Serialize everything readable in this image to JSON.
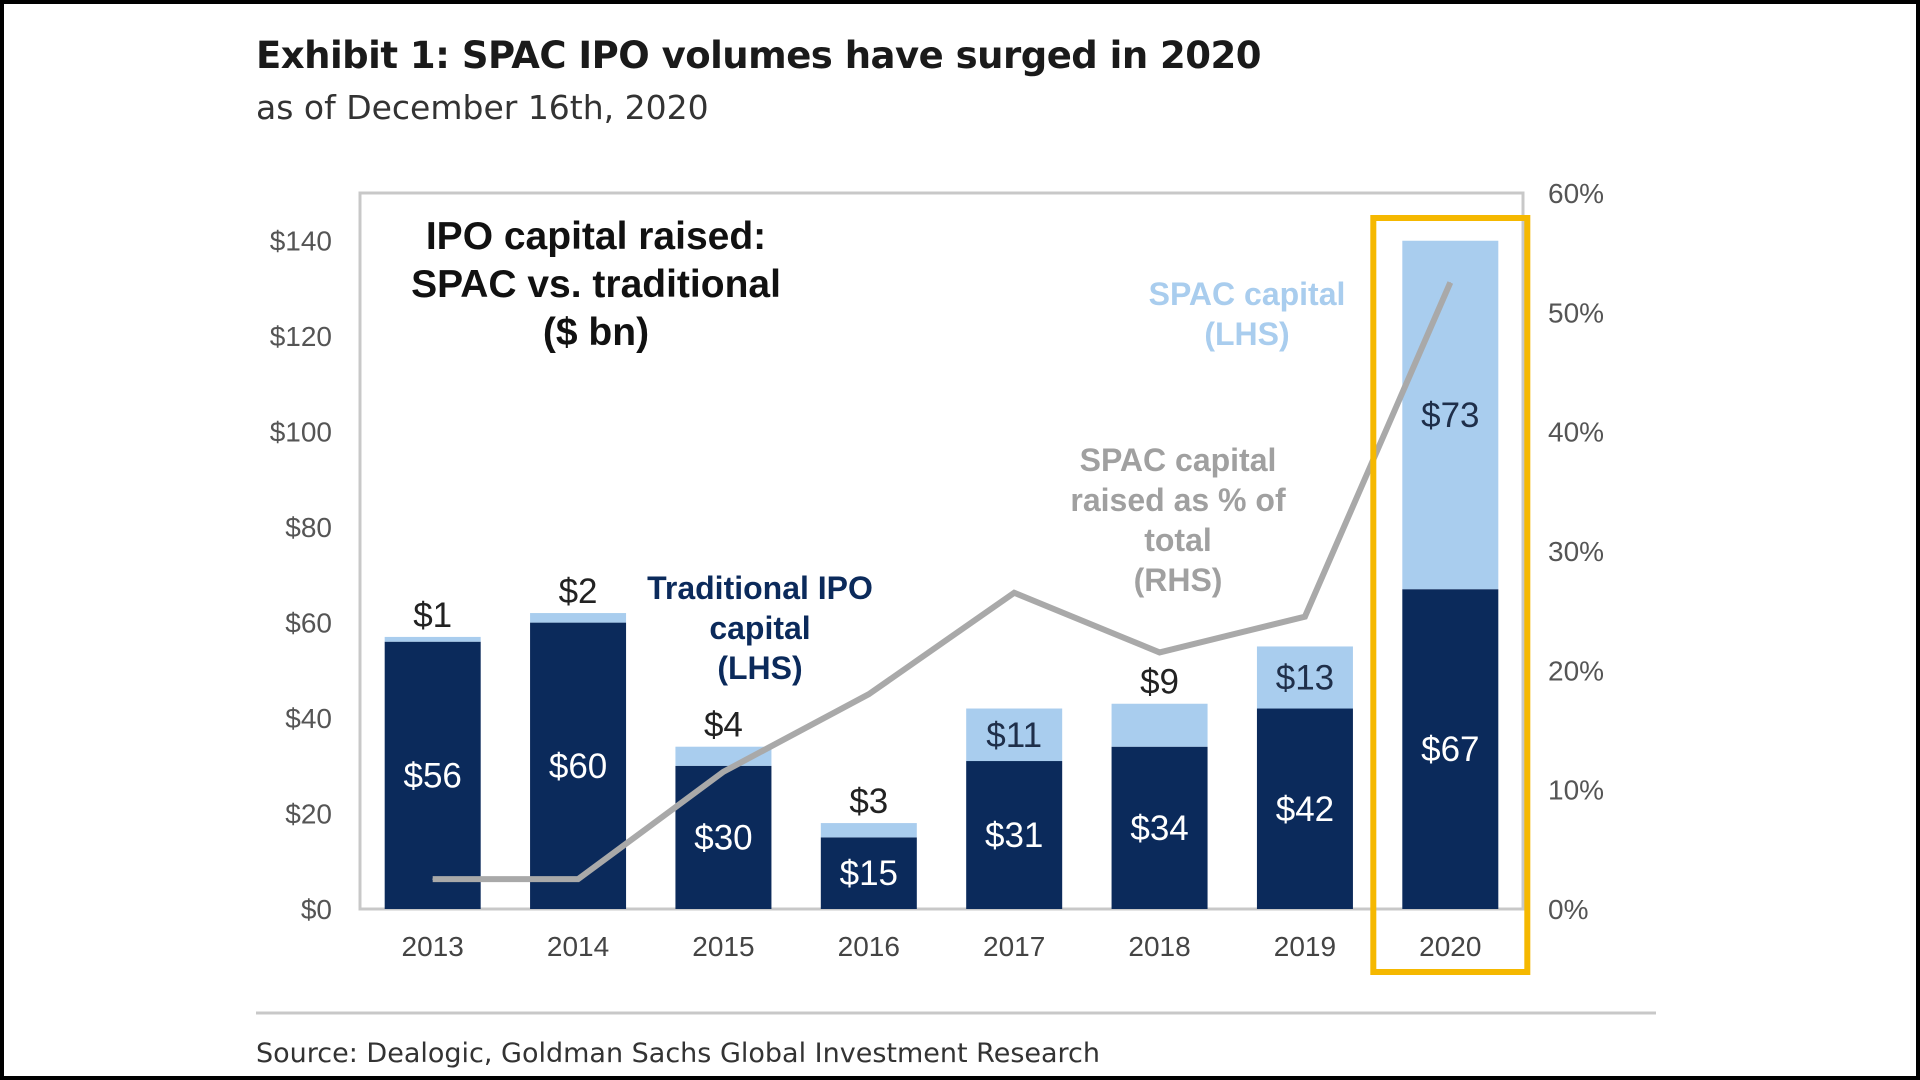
{
  "exhibit": {
    "title": "Exhibit 1: SPAC IPO volumes have surged in 2020",
    "subtitle": "as of December 16th, 2020",
    "source": "Source: Dealogic, Goldman Sachs Global Investment Research"
  },
  "colors": {
    "traditional": "#0b2a5b",
    "spac": "#a9cdee",
    "line": "#a9a9a9",
    "highlight": "#f5b800",
    "traditional_label": "#0b2a5b",
    "spac_label": "#a9cdee",
    "line_label": "#a0a0a0"
  },
  "chart_data": {
    "type": "bar",
    "stacked": true,
    "title": "IPO capital raised:\nSPAC vs. traditional\n($ bn)",
    "categories": [
      "2013",
      "2014",
      "2015",
      "2016",
      "2017",
      "2018",
      "2019",
      "2020"
    ],
    "series": [
      {
        "name": "Traditional IPO capital (LHS)",
        "axis": "left",
        "values": [
          56,
          60,
          30,
          15,
          31,
          34,
          42,
          67
        ],
        "labels": [
          "$56",
          "$60",
          "$30",
          "$15",
          "$31",
          "$34",
          "$42",
          "$67"
        ]
      },
      {
        "name": "SPAC capital (LHS)",
        "axis": "left",
        "values": [
          1,
          2,
          4,
          3,
          11,
          9,
          13,
          73
        ],
        "labels": [
          "$1",
          "$2",
          "$4",
          "$3",
          "$11",
          "$9",
          "$13",
          "$73"
        ]
      },
      {
        "name": "SPAC capital raised as % of total (RHS)",
        "axis": "right",
        "type": "line",
        "values": [
          2.5,
          2.5,
          11.5,
          18,
          26.5,
          21.5,
          24.5,
          52.5
        ]
      }
    ],
    "left_axis": {
      "ylim": [
        0,
        150
      ],
      "ticks": [
        0,
        20,
        40,
        60,
        80,
        100,
        120,
        140
      ],
      "tick_labels": [
        "$0",
        "$20",
        "$40",
        "$60",
        "$80",
        "$100",
        "$120",
        "$140"
      ]
    },
    "right_axis": {
      "ylim": [
        0,
        60
      ],
      "ticks": [
        0,
        10,
        20,
        30,
        40,
        50,
        60
      ],
      "tick_labels": [
        "0%",
        "10%",
        "20%",
        "30%",
        "40%",
        "50%",
        "60%"
      ]
    },
    "annotations": {
      "traditional": [
        "Traditional IPO",
        "capital",
        "(LHS)"
      ],
      "spac": [
        "SPAC capital",
        "(LHS)"
      ],
      "line": [
        "SPAC capital",
        "raised as % of",
        "total",
        "(RHS)"
      ]
    },
    "highlight_category": "2020",
    "grid": false
  }
}
